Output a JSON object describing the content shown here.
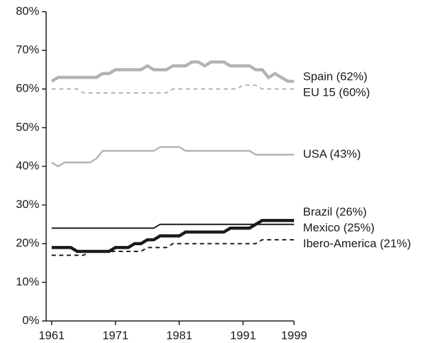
{
  "chart_data": {
    "type": "line",
    "x": [
      1961,
      1962,
      1963,
      1964,
      1965,
      1966,
      1967,
      1968,
      1969,
      1970,
      1971,
      1972,
      1973,
      1974,
      1975,
      1976,
      1977,
      1978,
      1979,
      1980,
      1981,
      1982,
      1983,
      1984,
      1985,
      1986,
      1987,
      1988,
      1989,
      1990,
      1991,
      1992,
      1993,
      1994,
      1995,
      1996,
      1997,
      1998,
      1999
    ],
    "xlim": [
      1961,
      1999
    ],
    "xticks": [
      1961,
      1971,
      1981,
      1991,
      1999
    ],
    "ylim": [
      0,
      80
    ],
    "yticks": [
      {
        "value": 0,
        "label": "0%"
      },
      {
        "value": 10,
        "label": "10%"
      },
      {
        "value": 20,
        "label": "20%"
      },
      {
        "value": 30,
        "label": "30%"
      },
      {
        "value": 40,
        "label": "40%"
      },
      {
        "value": 50,
        "label": "50%"
      },
      {
        "value": 60,
        "label": "60%"
      },
      {
        "value": 70,
        "label": "70%"
      },
      {
        "value": 80,
        "label": "80%"
      }
    ],
    "series": [
      {
        "name": "Spain (62%)",
        "color": "#b3b3b3",
        "width": 4.5,
        "dashed": false,
        "values": [
          62,
          63,
          63,
          63,
          63,
          63,
          63,
          63,
          64,
          64,
          65,
          65,
          65,
          65,
          65,
          66,
          65,
          65,
          65,
          66,
          66,
          66,
          67,
          67,
          66,
          67,
          67,
          67,
          66,
          66,
          66,
          66,
          65,
          65,
          63,
          64,
          63,
          62,
          62
        ]
      },
      {
        "name": "EU 15 (60%)",
        "color": "#b3b3b3",
        "width": 2,
        "dashed": true,
        "values": [
          60,
          60,
          60,
          60,
          60,
          59,
          59,
          59,
          59,
          59,
          59,
          59,
          59,
          59,
          59,
          59,
          59,
          59,
          59,
          60,
          60,
          60,
          60,
          60,
          60,
          60,
          60,
          60,
          60,
          60,
          61,
          61,
          61,
          60,
          60,
          60,
          60,
          60,
          60
        ]
      },
      {
        "name": "USA (43%)",
        "color": "#b3b3b3",
        "width": 2.5,
        "dashed": false,
        "values": [
          41,
          40,
          41,
          41,
          41,
          41,
          41,
          42,
          44,
          44,
          44,
          44,
          44,
          44,
          44,
          44,
          44,
          45,
          45,
          45,
          45,
          44,
          44,
          44,
          44,
          44,
          44,
          44,
          44,
          44,
          44,
          44,
          43,
          43,
          43,
          43,
          43,
          43,
          43
        ]
      },
      {
        "name": "Brazil (26%)",
        "color": "#1a1a1a",
        "width": 4.5,
        "dashed": false,
        "values": [
          19,
          19,
          19,
          19,
          18,
          18,
          18,
          18,
          18,
          18,
          19,
          19,
          19,
          20,
          20,
          21,
          21,
          22,
          22,
          22,
          22,
          23,
          23,
          23,
          23,
          23,
          23,
          23,
          24,
          24,
          24,
          24,
          25,
          26,
          26,
          26,
          26,
          26,
          26
        ]
      },
      {
        "name": "Mexico (25%)",
        "color": "#1a1a1a",
        "width": 2,
        "dashed": false,
        "values": [
          24,
          24,
          24,
          24,
          24,
          24,
          24,
          24,
          24,
          24,
          24,
          24,
          24,
          24,
          24,
          24,
          24,
          25,
          25,
          25,
          25,
          25,
          25,
          25,
          25,
          25,
          25,
          25,
          25,
          25,
          25,
          25,
          25,
          25,
          25,
          25,
          25,
          25,
          25
        ]
      },
      {
        "name": "Ibero-America (21%)",
        "color": "#1a1a1a",
        "width": 2,
        "dashed": true,
        "values": [
          17,
          17,
          17,
          17,
          17,
          17,
          18,
          18,
          18,
          18,
          18,
          18,
          18,
          18,
          18,
          19,
          19,
          19,
          19,
          20,
          20,
          20,
          20,
          20,
          20,
          20,
          20,
          20,
          20,
          20,
          20,
          20,
          20,
          21,
          21,
          21,
          21,
          21,
          21
        ]
      }
    ]
  }
}
